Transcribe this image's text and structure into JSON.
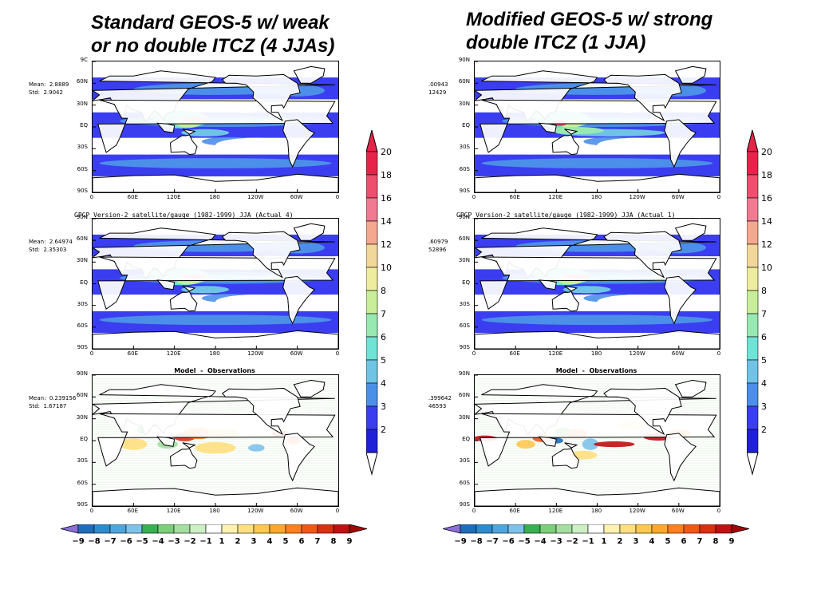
{
  "headings": {
    "left": "Standard GEOS-5 w/ weak\nor no double ITCZ (4 JJAs)",
    "right": "Modified GEOS-5 w/ strong\ndouble ITCZ (1 JJA)"
  },
  "lat_labels": [
    "90N",
    "60N",
    "30N",
    "EQ",
    "30S",
    "60S",
    "90S"
  ],
  "lat_labels_top": [
    "9C",
    "60N",
    "30N",
    "EQ",
    "30S",
    "60S",
    "90S"
  ],
  "lat_labels_top_right": [
    "90N",
    "60N",
    "30N",
    "EQ",
    "30S",
    "60S",
    "90S"
  ],
  "lon_labels": [
    "0",
    "60E",
    "120E",
    "180",
    "120W",
    "60W",
    "0"
  ],
  "columns": [
    {
      "side": "left",
      "panels": [
        {
          "kind": "model",
          "title": "",
          "mean": "Mean:  2.8889",
          "std": "Std:  2.9042"
        },
        {
          "kind": "obs",
          "title": "GPCP_Version-2_satellite/gauge_(1982-1999) JJA (Actual 4)",
          "mean": "Mean:  2.64974",
          "std": "Std:  2.35303"
        },
        {
          "kind": "diff",
          "title": "Model  -  Observations",
          "mean": "Mean:  0.239156",
          "std": "Std:  1.67187"
        }
      ]
    },
    {
      "side": "right",
      "panels": [
        {
          "kind": "model",
          "title": "",
          "mean": ".00943",
          "std": "12429"
        },
        {
          "kind": "obs",
          "title": "GPCP_Version-2_satellite/gauge_(1982-1999) JJA (Actual 1)",
          "mean": ".60979",
          "std": "52896"
        },
        {
          "kind": "diff",
          "title": "Model  -  Observations",
          "mean": ".399642",
          "std": "46593"
        }
      ]
    }
  ],
  "precip_colorbar": {
    "labels": [
      "20",
      "18",
      "16",
      "14",
      "12",
      "10",
      "8",
      "7",
      "6",
      "5",
      "4",
      "3",
      "2"
    ],
    "colors": [
      "#e8234a",
      "#ef4f6e",
      "#f07a92",
      "#f4a890",
      "#f2d79a",
      "#eeec9e",
      "#c8ee9a",
      "#98e8b2",
      "#6ee3d6",
      "#6fc4e6",
      "#4c8fe8",
      "#3a3ef0",
      "#2020d8"
    ]
  },
  "diff_colorbar": {
    "labels": [
      "-9",
      "-8",
      "-7",
      "-6",
      "-5",
      "-4",
      "-3",
      "-2",
      "-1",
      "1",
      "2",
      "3",
      "4",
      "5",
      "6",
      "7",
      "8",
      "9"
    ],
    "colors": [
      "#8a70d8",
      "#1f6db8",
      "#2f8ccc",
      "#4fa6dc",
      "#7ec2ea",
      "#38b050",
      "#7ccf78",
      "#a4dea0",
      "#ccf0c4",
      "#ffffff",
      "#fff2b0",
      "#ffe080",
      "#ffc850",
      "#ffa830",
      "#ff8020",
      "#f05818",
      "#d83010",
      "#c01010",
      "#a00808"
    ]
  }
}
